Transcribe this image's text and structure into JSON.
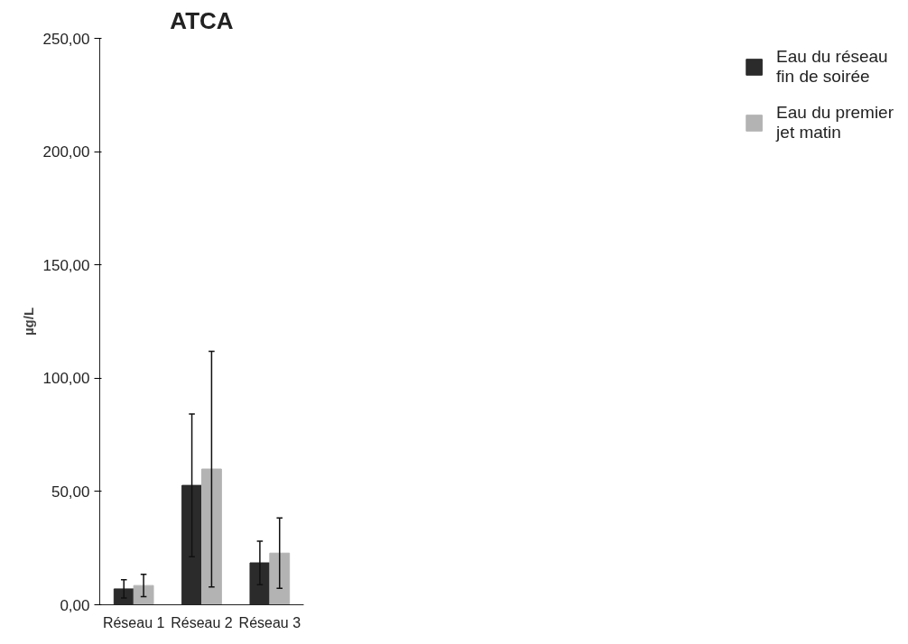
{
  "chart_data": {
    "type": "bar",
    "title": "ATCA",
    "ylabel": "µg/L",
    "categories": [
      "Réseau 1",
      "Réseau 2",
      "Réseau 3"
    ],
    "series": [
      {
        "name": "Eau du réseau fin de soirée",
        "color": "#2b2b2b",
        "values": [
          7.0,
          52.7,
          18.5
        ],
        "errors": [
          4.0,
          31.5,
          9.6
        ]
      },
      {
        "name": "Eau du premier jet matin",
        "color": "#b3b3b3",
        "values": [
          8.5,
          59.9,
          22.8
        ],
        "errors": [
          4.9,
          52.0,
          15.5
        ]
      }
    ],
    "ylim": [
      0,
      250
    ],
    "yticks": [
      {
        "value": 0,
        "label": "0,00"
      },
      {
        "value": 50,
        "label": "50,00"
      },
      {
        "value": 100,
        "label": "100,00"
      },
      {
        "value": 150,
        "label": "150,00"
      },
      {
        "value": 200,
        "label": "200,00"
      },
      {
        "value": 250,
        "label": "250,00"
      }
    ],
    "grid": false,
    "legend": "top right"
  }
}
